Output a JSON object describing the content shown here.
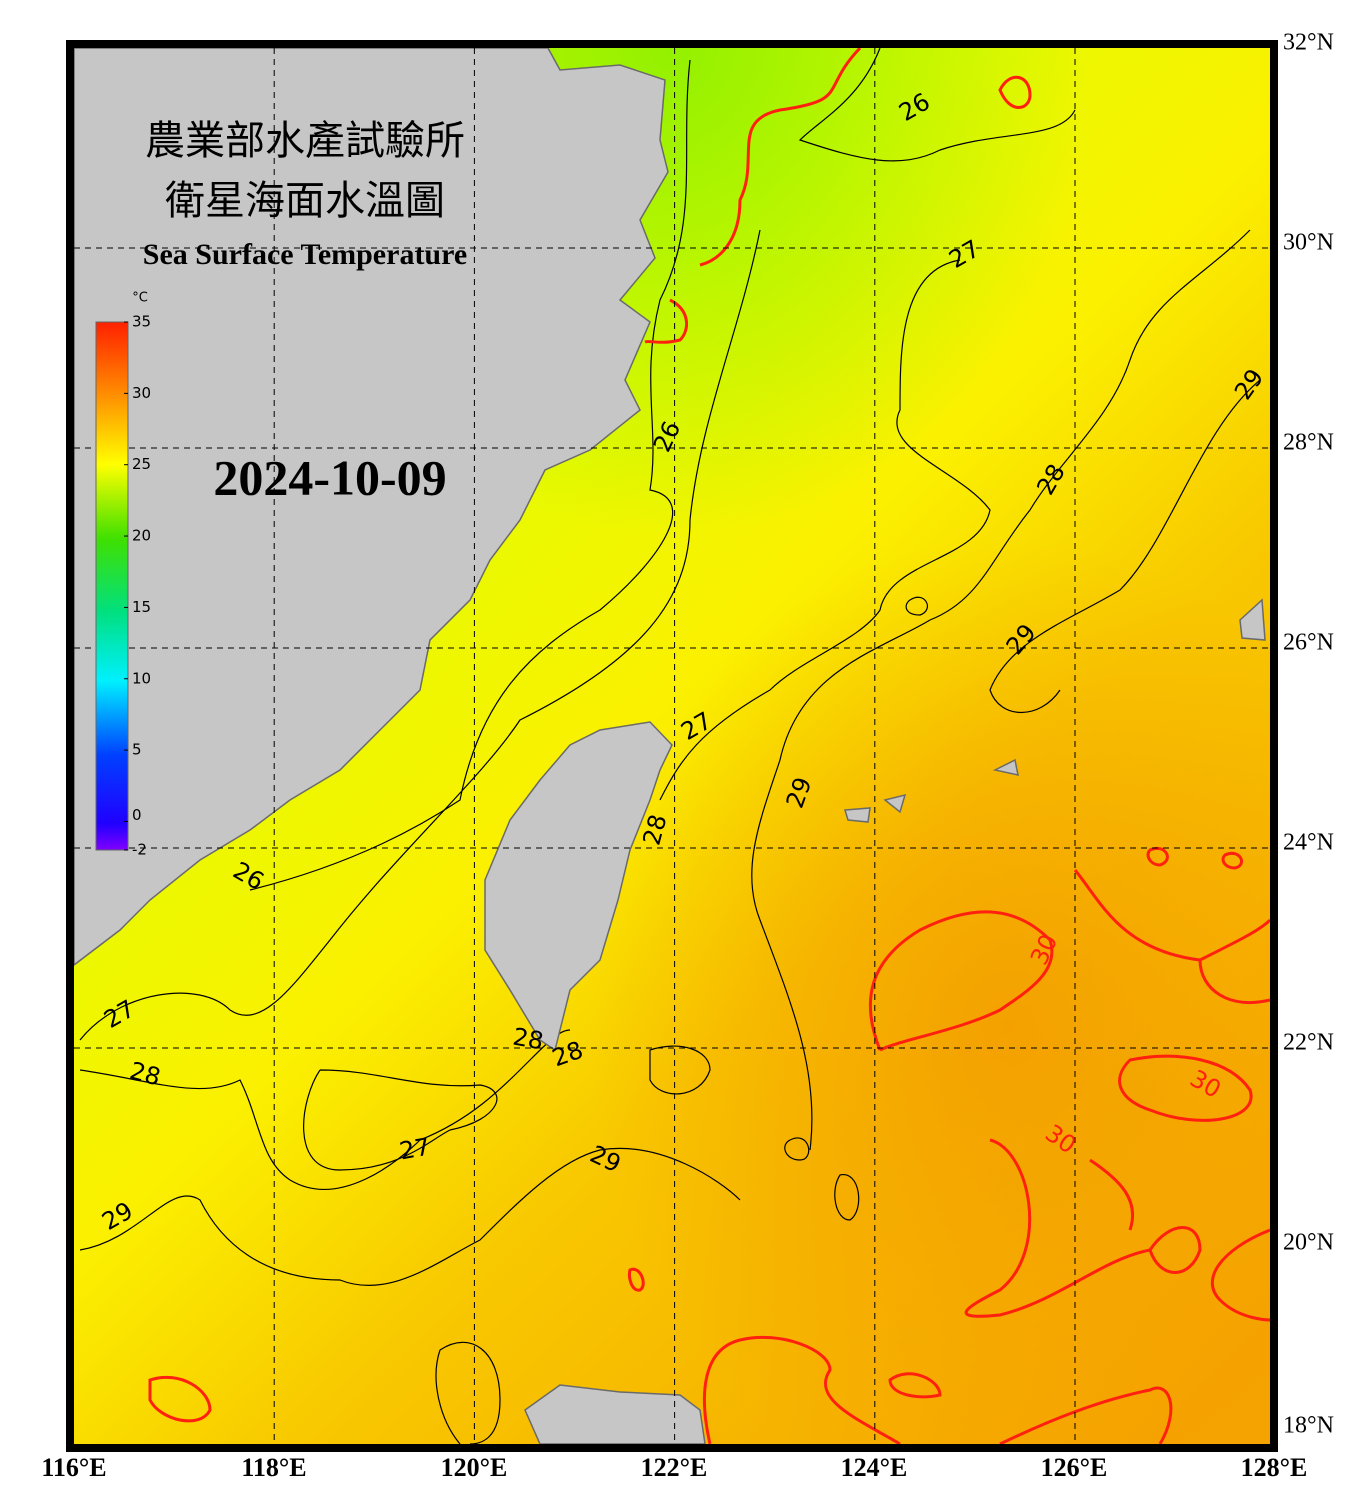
{
  "title_lines": [
    "農業部水產試驗所",
    "衛星海面水溫圖"
  ],
  "subtitle": "Sea Surface Temperature",
  "date": "2024-10-09",
  "colorbar": {
    "unit": "°C",
    "range": [
      -2,
      35
    ],
    "ticks": [
      35,
      30,
      25,
      20,
      15,
      10,
      5,
      0,
      -2
    ]
  },
  "lon_labels": [
    "116°E",
    "118°E",
    "120°E",
    "122°E",
    "124°E",
    "126°E",
    "128°E"
  ],
  "lat_labels": [
    "32°N",
    "30°N",
    "28°N",
    "26°N",
    "24°N",
    "22°N",
    "20°N",
    "18°N"
  ],
  "contour_labels": [
    26,
    27,
    29,
    26,
    28,
    29,
    27,
    29,
    28,
    26,
    27,
    28,
    28,
    28,
    27,
    29,
    29,
    30,
    30,
    30
  ]
}
